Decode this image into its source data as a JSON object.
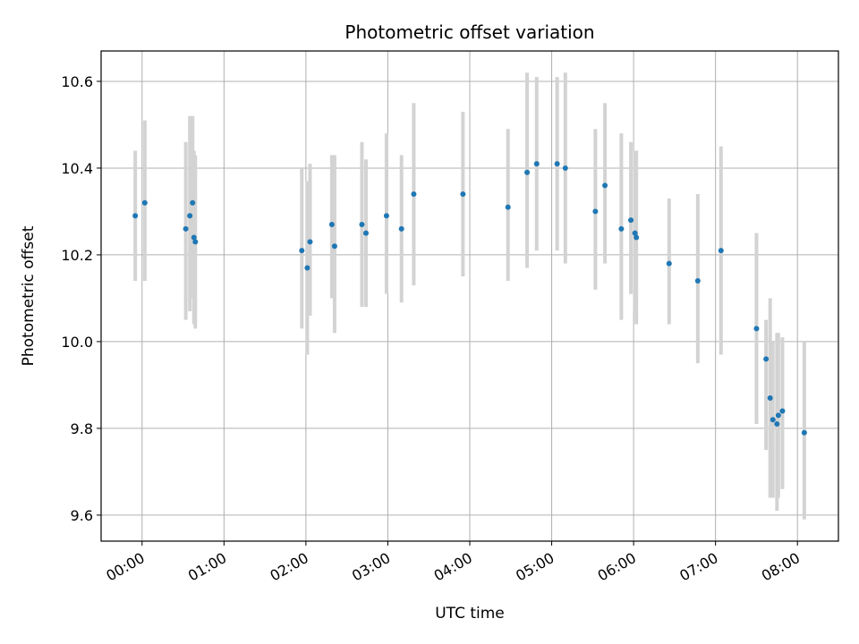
{
  "chart_data": {
    "type": "scatter",
    "title": "Photometric offset variation",
    "xlabel": "UTC time",
    "ylabel": "Photometric offset",
    "x_unit": "hours UTC",
    "xlim": [
      "23:30",
      "08:30"
    ],
    "ylim": [
      9.54,
      10.67
    ],
    "xticks": [
      {
        "time": "00:00",
        "label": "00:00"
      },
      {
        "time": "01:00",
        "label": "01:00"
      },
      {
        "time": "02:00",
        "label": "02:00"
      },
      {
        "time": "03:00",
        "label": "03:00"
      },
      {
        "time": "04:00",
        "label": "04:00"
      },
      {
        "time": "05:00",
        "label": "05:00"
      },
      {
        "time": "06:00",
        "label": "06:00"
      },
      {
        "time": "07:00",
        "label": "07:00"
      },
      {
        "time": "08:00",
        "label": "08:00"
      }
    ],
    "yticks": [
      {
        "value": 9.6,
        "label": "9.6"
      },
      {
        "value": 9.8,
        "label": "9.8"
      },
      {
        "value": 10.0,
        "label": "10.0"
      },
      {
        "value": 10.2,
        "label": "10.2"
      },
      {
        "value": 10.4,
        "label": "10.4"
      },
      {
        "value": 10.6,
        "label": "10.6"
      }
    ],
    "grid": true,
    "marker_color": "#1f77b4",
    "errorbar_color": "#d3d3d3",
    "points": [
      {
        "x": "23:55",
        "y": 10.29,
        "low": 10.14,
        "high": 10.44
      },
      {
        "x": "00:02",
        "y": 10.32,
        "low": 10.14,
        "high": 10.51
      },
      {
        "x": "00:32",
        "y": 10.26,
        "low": 10.05,
        "high": 10.46
      },
      {
        "x": "00:35",
        "y": 10.29,
        "low": 10.07,
        "high": 10.52
      },
      {
        "x": "00:37",
        "y": 10.32,
        "low": 10.1,
        "high": 10.52
      },
      {
        "x": "00:38",
        "y": 10.24,
        "low": 10.04,
        "high": 10.44
      },
      {
        "x": "00:39",
        "y": 10.23,
        "low": 10.03,
        "high": 10.43
      },
      {
        "x": "01:57",
        "y": 10.21,
        "low": 10.03,
        "high": 10.4
      },
      {
        "x": "02:01",
        "y": 10.17,
        "low": 9.97,
        "high": 10.37
      },
      {
        "x": "02:03",
        "y": 10.23,
        "low": 10.06,
        "high": 10.41
      },
      {
        "x": "02:19",
        "y": 10.27,
        "low": 10.1,
        "high": 10.43
      },
      {
        "x": "02:21",
        "y": 10.22,
        "low": 10.02,
        "high": 10.43
      },
      {
        "x": "02:41",
        "y": 10.27,
        "low": 10.08,
        "high": 10.46
      },
      {
        "x": "02:44",
        "y": 10.25,
        "low": 10.08,
        "high": 10.42
      },
      {
        "x": "02:59",
        "y": 10.29,
        "low": 10.11,
        "high": 10.48
      },
      {
        "x": "03:10",
        "y": 10.26,
        "low": 10.09,
        "high": 10.43
      },
      {
        "x": "03:19",
        "y": 10.34,
        "low": 10.13,
        "high": 10.55
      },
      {
        "x": "03:55",
        "y": 10.34,
        "low": 10.15,
        "high": 10.53
      },
      {
        "x": "04:28",
        "y": 10.31,
        "low": 10.14,
        "high": 10.49
      },
      {
        "x": "04:42",
        "y": 10.39,
        "low": 10.17,
        "high": 10.62
      },
      {
        "x": "04:49",
        "y": 10.41,
        "low": 10.21,
        "high": 10.61
      },
      {
        "x": "05:04",
        "y": 10.41,
        "low": 10.21,
        "high": 10.61
      },
      {
        "x": "05:10",
        "y": 10.4,
        "low": 10.18,
        "high": 10.62
      },
      {
        "x": "05:32",
        "y": 10.3,
        "low": 10.12,
        "high": 10.49
      },
      {
        "x": "05:39",
        "y": 10.36,
        "low": 10.18,
        "high": 10.55
      },
      {
        "x": "05:51",
        "y": 10.26,
        "low": 10.05,
        "high": 10.48
      },
      {
        "x": "05:58",
        "y": 10.28,
        "low": 10.11,
        "high": 10.46
      },
      {
        "x": "06:01",
        "y": 10.25,
        "low": 10.07,
        "high": 10.44
      },
      {
        "x": "06:02",
        "y": 10.24,
        "low": 10.04,
        "high": 10.44
      },
      {
        "x": "06:26",
        "y": 10.18,
        "low": 10.04,
        "high": 10.33
      },
      {
        "x": "06:47",
        "y": 10.14,
        "low": 9.95,
        "high": 10.34
      },
      {
        "x": "07:04",
        "y": 10.21,
        "low": 9.97,
        "high": 10.45
      },
      {
        "x": "07:30",
        "y": 10.03,
        "low": 9.81,
        "high": 10.25
      },
      {
        "x": "07:37",
        "y": 9.96,
        "low": 9.75,
        "high": 10.05
      },
      {
        "x": "07:40",
        "y": 9.87,
        "low": 9.64,
        "high": 10.1
      },
      {
        "x": "07:42",
        "y": 9.82,
        "low": 9.64,
        "high": 10.0
      },
      {
        "x": "07:45",
        "y": 9.81,
        "low": 9.61,
        "high": 10.02
      },
      {
        "x": "07:46",
        "y": 9.83,
        "low": 9.64,
        "high": 10.02
      },
      {
        "x": "07:49",
        "y": 9.84,
        "low": 9.66,
        "high": 10.01
      },
      {
        "x": "08:05",
        "y": 9.79,
        "low": 9.59,
        "high": 10.0
      }
    ]
  }
}
